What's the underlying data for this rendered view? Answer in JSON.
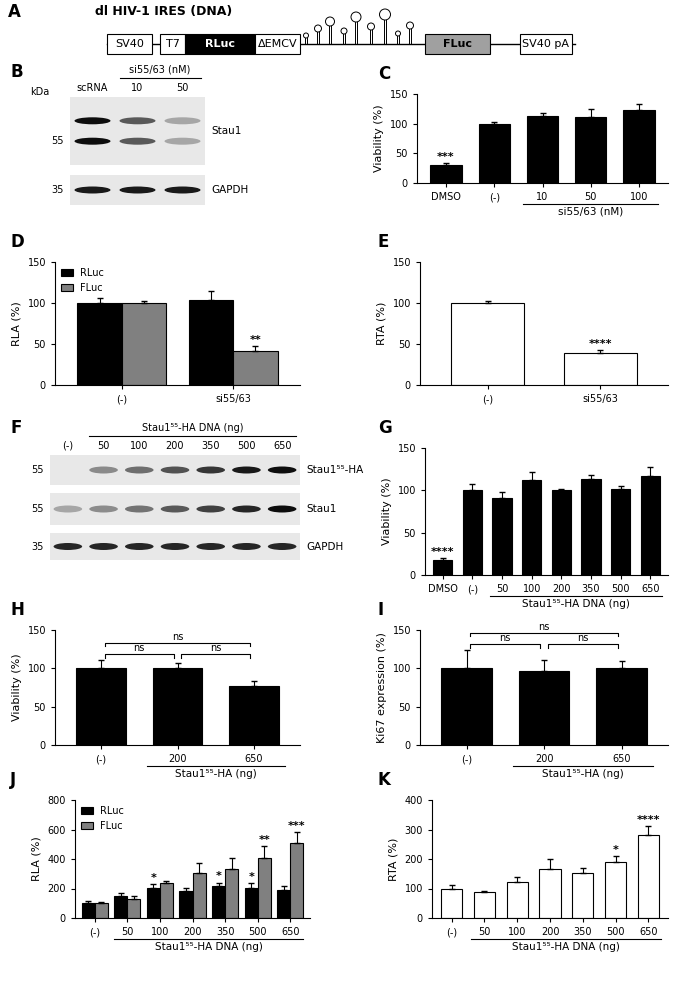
{
  "diagram": {
    "panel": "A",
    "title": "dl HIV-1 IRES (DNA)",
    "elements": [
      {
        "label": "SV40",
        "color": "#ffffff"
      },
      {
        "label": "T7",
        "color": "#ffffff"
      },
      {
        "label": "RLuc",
        "color": "#000000"
      },
      {
        "label": "ΔEMCV",
        "color": "#ffffff"
      },
      {
        "label": "FLuc",
        "color": "#a0a0a0"
      },
      {
        "label": "SV40 pA",
        "color": "#ffffff"
      }
    ]
  },
  "blots": [
    {
      "panel": "B",
      "header": "si55/63 (nM)",
      "header_lanes": [
        "10",
        "50"
      ],
      "lanes": [
        "scRNA",
        "10",
        "50"
      ],
      "unit": "kDa",
      "rows": [
        {
          "label": "Stau1",
          "marker": "55"
        },
        {
          "label": "GAPDH",
          "marker": "35"
        }
      ]
    },
    {
      "panel": "F",
      "header": "Stau1⁵⁵-HA DNA (ng)",
      "header_lanes": [
        "50",
        "100",
        "200",
        "350",
        "500",
        "650"
      ],
      "lanes": [
        "(-)",
        "50",
        "100",
        "200",
        "350",
        "500",
        "650"
      ],
      "rows": [
        {
          "label": "Stau1⁵⁵-HA",
          "marker": "55"
        },
        {
          "label": "Stau1",
          "marker": "55"
        },
        {
          "label": "GAPDH",
          "marker": "35"
        }
      ]
    }
  ],
  "chart_data": [
    {
      "panel": "C",
      "type": "bar",
      "categories": [
        "DMSO",
        "(-)",
        "10",
        "50",
        "100"
      ],
      "values": [
        30,
        100,
        113,
        112,
        123
      ],
      "errors": [
        4,
        3,
        5,
        13,
        10
      ],
      "color": "#000000",
      "ylabel": "Viability (%)",
      "xlabel": "si55/63 (nM)",
      "xlabel_categories": [
        "10",
        "50",
        "100"
      ],
      "ylim": [
        0,
        150
      ],
      "yticks": [
        0,
        50,
        100,
        150
      ],
      "annotations": [
        {
          "text": "***",
          "category": "DMSO"
        }
      ]
    },
    {
      "panel": "D",
      "type": "bar",
      "categories": [
        "(-)",
        "si55/63"
      ],
      "series": [
        {
          "name": "RLuc",
          "color": "#000000",
          "values": [
            100,
            104
          ],
          "errors": [
            6,
            11
          ]
        },
        {
          "name": "FLuc",
          "color": "#808080",
          "values": [
            100,
            41
          ],
          "errors": [
            3,
            6
          ]
        }
      ],
      "ylabel": "RLA (%)",
      "ylim": [
        0,
        150
      ],
      "yticks": [
        0,
        50,
        100,
        150
      ],
      "legend": "upper left",
      "annotations": [
        {
          "text": "**",
          "category": "si55/63",
          "series": "FLuc"
        }
      ]
    },
    {
      "panel": "E",
      "type": "bar",
      "categories": [
        "(-)",
        "si55/63"
      ],
      "values": [
        100,
        39
      ],
      "errors": [
        3,
        4
      ],
      "color": "#ffffff",
      "ylabel": "RTA (%)",
      "ylim": [
        0,
        150
      ],
      "yticks": [
        0,
        50,
        100,
        150
      ],
      "annotations": [
        {
          "text": "****",
          "category": "si55/63"
        }
      ]
    },
    {
      "panel": "G",
      "type": "bar",
      "categories": [
        "DMSO",
        "(-)",
        "50",
        "100",
        "200",
        "350",
        "500",
        "650"
      ],
      "values": [
        18,
        100,
        91,
        112,
        100,
        113,
        102,
        117
      ],
      "errors": [
        2,
        8,
        7,
        10,
        2,
        5,
        3,
        10
      ],
      "color": "#000000",
      "ylabel": "Viability (%)",
      "xlabel": "Stau1⁵⁵-HA DNA (ng)",
      "xlabel_categories": [
        "50",
        "100",
        "200",
        "350",
        "500",
        "650"
      ],
      "ylim": [
        0,
        150
      ],
      "yticks": [
        0,
        50,
        100,
        150
      ],
      "annotations": [
        {
          "text": "****",
          "category": "DMSO"
        }
      ]
    },
    {
      "panel": "H",
      "type": "bar",
      "categories": [
        "(-)",
        "200",
        "650"
      ],
      "values": [
        100,
        100,
        77
      ],
      "errors": [
        11,
        7,
        7
      ],
      "color": "#000000",
      "ylabel": "Viability (%)",
      "xlabel": "Stau1⁵⁵-HA (ng)",
      "xlabel_categories": [
        "200",
        "650"
      ],
      "ylim": [
        0,
        150
      ],
      "yticks": [
        0,
        50,
        100,
        150
      ],
      "annotations": [
        {
          "text": "ns",
          "between": [
            "(-)",
            "200"
          ]
        },
        {
          "text": "ns",
          "between": [
            "200",
            "650"
          ]
        },
        {
          "text": "ns",
          "between": [
            "(-)",
            "650"
          ]
        }
      ]
    },
    {
      "panel": "I",
      "type": "bar",
      "categories": [
        "(-)",
        "200",
        "650"
      ],
      "values": [
        100,
        97,
        101
      ],
      "errors": [
        24,
        14,
        9
      ],
      "color": "#000000",
      "ylabel": "Ki67 expression (%)",
      "xlabel": "Stau1⁵⁵-HA (ng)",
      "xlabel_categories": [
        "200",
        "650"
      ],
      "ylim": [
        0,
        150
      ],
      "yticks": [
        0,
        50,
        100,
        150
      ],
      "annotations": [
        {
          "text": "ns",
          "between": [
            "(-)",
            "200"
          ]
        },
        {
          "text": "ns",
          "between": [
            "200",
            "650"
          ]
        },
        {
          "text": "ns",
          "between": [
            "(-)",
            "650"
          ]
        }
      ]
    },
    {
      "panel": "J",
      "type": "bar",
      "categories": [
        "(-)",
        "50",
        "100",
        "200",
        "350",
        "500",
        "650"
      ],
      "series": [
        {
          "name": "RLuc",
          "color": "#000000",
          "values": [
            100,
            148,
            205,
            185,
            215,
            205,
            190
          ],
          "errors": [
            15,
            20,
            25,
            20,
            25,
            30,
            30
          ]
        },
        {
          "name": "FLuc",
          "color": "#808080",
          "values": [
            100,
            130,
            238,
            308,
            335,
            405,
            510
          ],
          "errors": [
            8,
            20,
            15,
            65,
            70,
            85,
            70
          ]
        }
      ],
      "ylabel": "RLA (%)",
      "xlabel": "Stau1⁵⁵-HA DNA (ng)",
      "xlabel_categories": [
        "50",
        "100",
        "200",
        "350",
        "500",
        "650"
      ],
      "ylim": [
        0,
        800
      ],
      "yticks": [
        0,
        200,
        400,
        600,
        800
      ],
      "legend": "upper left",
      "annotations": [
        {
          "text": "*",
          "category": "100",
          "series": "RLuc"
        },
        {
          "text": "*",
          "category": "350",
          "series": "RLuc"
        },
        {
          "text": "*",
          "category": "500",
          "series": "RLuc"
        },
        {
          "text": "**",
          "category": "500",
          "series": "FLuc"
        },
        {
          "text": "***",
          "category": "650",
          "series": "FLuc"
        }
      ]
    },
    {
      "panel": "K",
      "type": "bar",
      "categories": [
        "(-)",
        "50",
        "100",
        "200",
        "350",
        "500",
        "650"
      ],
      "values": [
        100,
        88,
        122,
        167,
        153,
        190,
        282
      ],
      "errors": [
        12,
        4,
        18,
        32,
        15,
        20,
        30
      ],
      "color": "#ffffff",
      "ylabel": "RTA (%)",
      "xlabel": "Stau1⁵⁵-HA DNA (ng)",
      "xlabel_categories": [
        "50",
        "100",
        "200",
        "350",
        "500",
        "650"
      ],
      "ylim": [
        0,
        400
      ],
      "yticks": [
        0,
        100,
        200,
        300,
        400
      ],
      "annotations": [
        {
          "text": "*",
          "category": "500"
        },
        {
          "text": "****",
          "category": "650"
        }
      ]
    }
  ]
}
